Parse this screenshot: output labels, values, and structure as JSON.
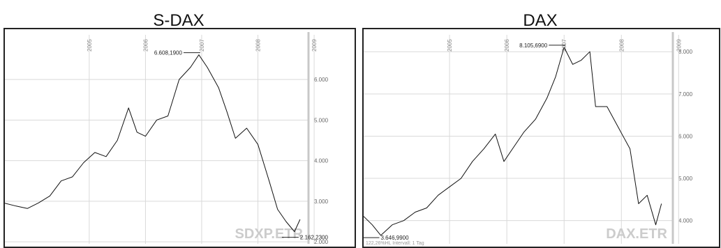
{
  "chart_data": [
    {
      "type": "line",
      "title": "S-DAX",
      "watermark": "SDXP.ETR",
      "x_ticks": [
        "2005",
        "2006",
        "2007",
        "2008",
        "2009"
      ],
      "y_ticks": [
        "2.000",
        "3.000",
        "4.000",
        "5.000",
        "6.000"
      ],
      "ylim": [
        1950,
        7100
      ],
      "grid": true,
      "annotations": [
        {
          "label": "6.608,1900",
          "x": 2007.45,
          "y": 6608
        },
        {
          "label": "2.162,2300",
          "x": 2009.2,
          "y": 2162
        }
      ],
      "footer": "",
      "x": [
        2004.0,
        2004.2,
        2004.4,
        2004.6,
        2004.8,
        2005.0,
        2005.2,
        2005.4,
        2005.6,
        2005.8,
        2006.0,
        2006.2,
        2006.35,
        2006.5,
        2006.7,
        2006.9,
        2007.1,
        2007.3,
        2007.45,
        2007.6,
        2007.8,
        2007.95,
        2008.1,
        2008.3,
        2008.5,
        2008.7,
        2008.85,
        2009.0,
        2009.15,
        2009.25
      ],
      "values": [
        2950,
        2880,
        2820,
        2960,
        3130,
        3500,
        3600,
        3950,
        4200,
        4100,
        4500,
        5300,
        4700,
        4600,
        5000,
        5100,
        6000,
        6300,
        6608,
        6300,
        5800,
        5200,
        4550,
        4800,
        4400,
        3500,
        2800,
        2500,
        2250,
        2550
      ]
    },
    {
      "type": "line",
      "title": "DAX",
      "watermark": "DAX.ETR",
      "x_ticks": [
        "2005",
        "2006",
        "2007",
        "2008",
        "2009"
      ],
      "y_ticks": [
        "4.000",
        "5.000",
        "6.000",
        "7.000",
        "8.000"
      ],
      "ylim": [
        3450,
        8400
      ],
      "grid": true,
      "annotations": [
        {
          "label": "8.105,6900",
          "x": 2007.5,
          "y": 8105
        },
        {
          "label": "3.646,9900",
          "x": 2004.25,
          "y": 3646
        }
      ],
      "footer": "122,26%HL   Intervall: 1 Tag",
      "x": [
        2004.0,
        2004.15,
        2004.3,
        2004.5,
        2004.7,
        2004.9,
        2005.1,
        2005.3,
        2005.5,
        2005.7,
        2005.9,
        2006.1,
        2006.3,
        2006.45,
        2006.6,
        2006.8,
        2007.0,
        2007.2,
        2007.35,
        2007.5,
        2007.65,
        2007.8,
        2007.95,
        2008.05,
        2008.25,
        2008.45,
        2008.65,
        2008.8,
        2008.95,
        2009.1,
        2009.2
      ],
      "values": [
        4100,
        3900,
        3650,
        3900,
        4000,
        4200,
        4300,
        4600,
        4800,
        5000,
        5400,
        5700,
        6050,
        5400,
        5700,
        6100,
        6400,
        6900,
        7400,
        8105,
        7700,
        7800,
        8000,
        6700,
        6700,
        6200,
        5700,
        4400,
        4600,
        3900,
        4400
      ]
    }
  ]
}
